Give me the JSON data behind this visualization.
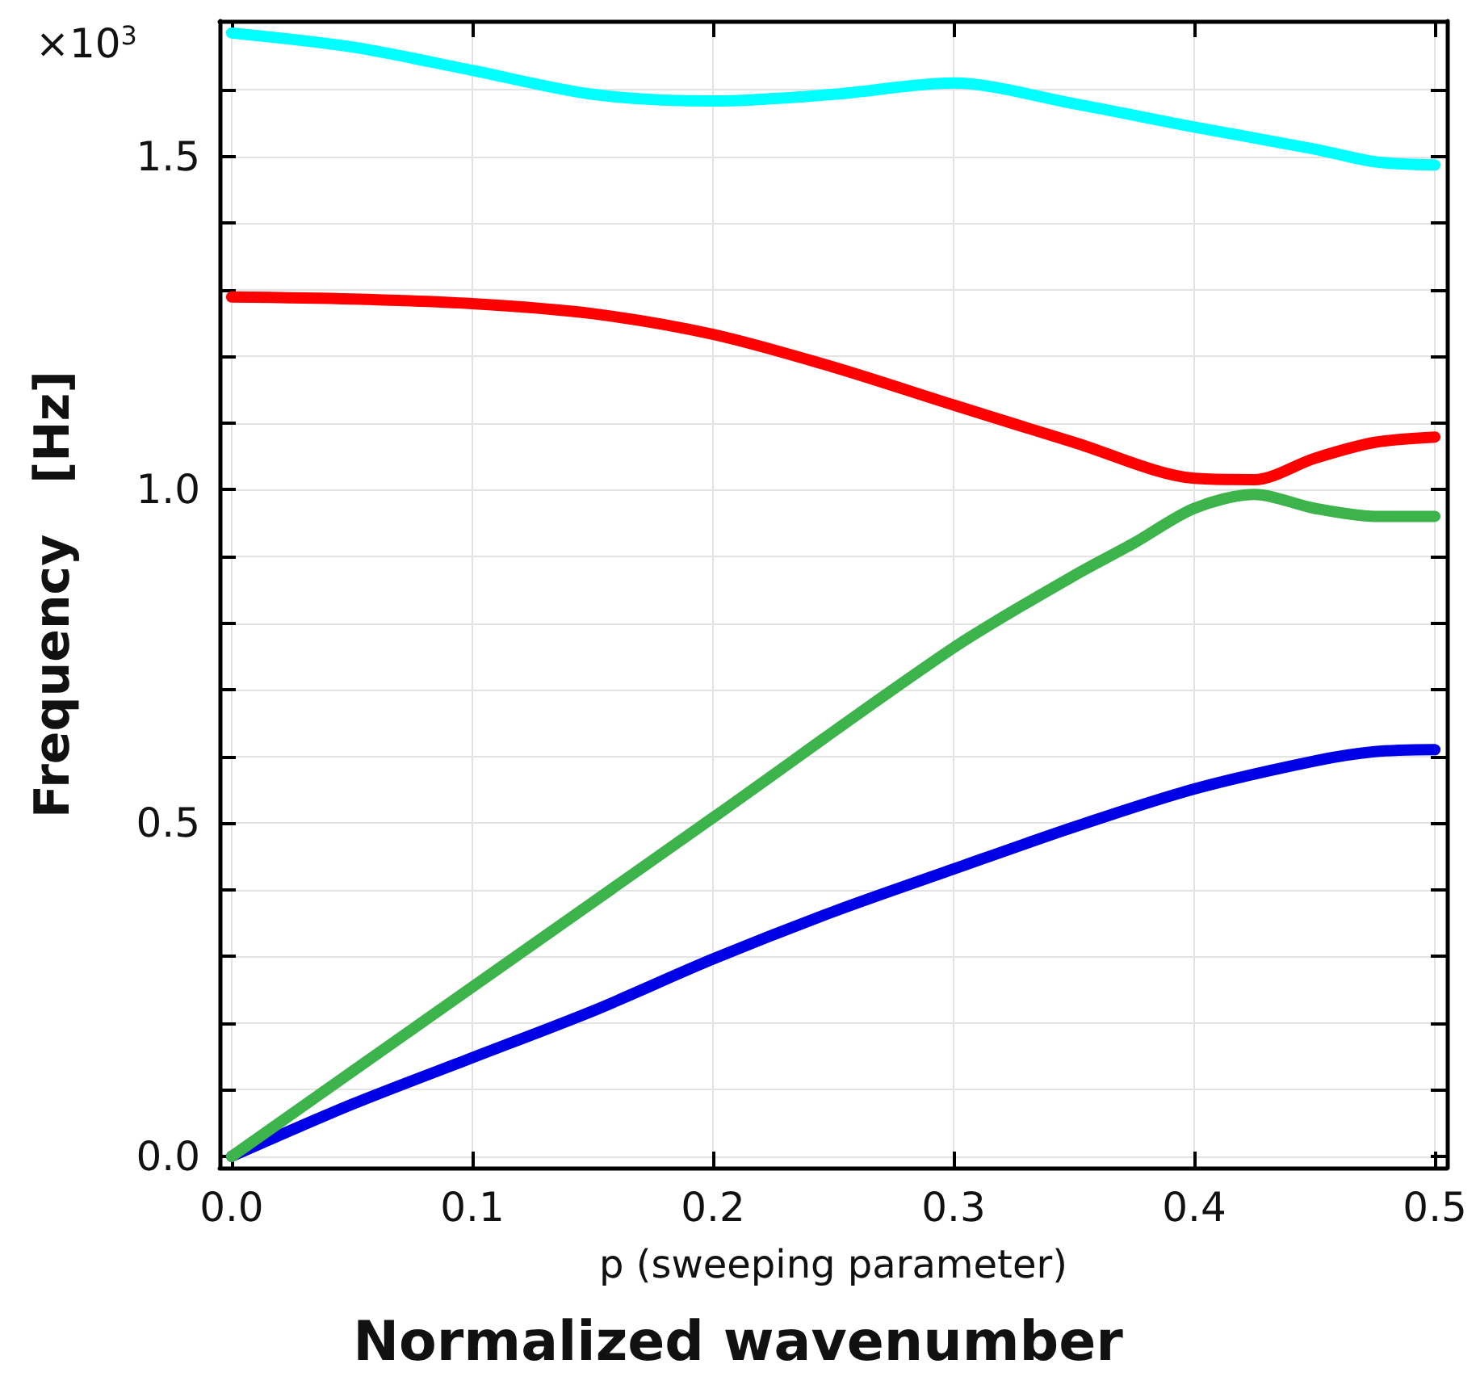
{
  "chart_data": {
    "type": "line",
    "xlabel": "p (sweeping parameter)",
    "ylabel": "Frequency   [Hz]",
    "annotations": [
      "×10$^{3}$",
      "Normalized wavenumber"
    ],
    "xlim": [
      -0.005,
      0.505
    ],
    "ylim": [
      -0.017,
      1.703
    ],
    "xticks": [
      {
        "value": 0,
        "label": "0.0"
      },
      0.1,
      0.2,
      0.3,
      0.4,
      0.5
    ],
    "yticks": [
      {
        "value": 0,
        "label": "0.0"
      },
      {
        "value": 0.1,
        "label": null
      },
      {
        "value": 0.2,
        "label": null
      },
      {
        "value": 0.3,
        "label": null
      },
      {
        "value": 0.4,
        "label": null
      },
      0.5,
      {
        "value": 0.6,
        "label": null
      },
      {
        "value": 0.7,
        "label": null
      },
      {
        "value": 0.8,
        "label": null
      },
      {
        "value": 0.9,
        "label": null
      },
      {
        "value": 1,
        "label": "1.0"
      },
      {
        "value": 1.1,
        "label": null
      },
      {
        "value": 1.2,
        "label": null
      },
      {
        "value": 1.3,
        "label": null
      },
      {
        "value": 1.4,
        "label": null
      },
      1.5,
      {
        "value": 1.6,
        "label": null
      }
    ],
    "grid": true,
    "marker": "none",
    "line_style": "solid",
    "series": [
      {
        "color": "#0000e6",
        "x": [
          0,
          0.05,
          0.1,
          0.15,
          0.2,
          0.25,
          0.3,
          0.35,
          0.4,
          0.45,
          0.475,
          0.5
        ],
        "values": [
          0,
          0.078,
          0.148,
          0.218,
          0.296,
          0.367,
          0.431,
          0.494,
          0.551,
          0.593,
          0.607,
          0.61
        ]
      },
      {
        "color": "#3cb44b",
        "x": [
          0,
          0.1,
          0.2,
          0.3,
          0.35,
          0.375,
          0.4,
          0.425,
          0.45,
          0.475,
          0.5
        ],
        "values": [
          0,
          0.254,
          0.508,
          0.763,
          0.871,
          0.92,
          0.972,
          0.993,
          0.972,
          0.96,
          0.96
        ]
      },
      {
        "color": "#ff0000",
        "x": [
          0,
          0.05,
          0.1,
          0.15,
          0.2,
          0.25,
          0.3,
          0.35,
          0.4,
          0.425,
          0.45,
          0.475,
          0.5
        ],
        "values": [
          1.289,
          1.286,
          1.279,
          1.264,
          1.233,
          1.184,
          1.127,
          1.071,
          1.017,
          1.015,
          1.047,
          1.071,
          1.079
        ]
      },
      {
        "color": "#00ffff",
        "x": [
          0,
          0.05,
          0.1,
          0.15,
          0.2,
          0.25,
          0.3,
          0.35,
          0.4,
          0.45,
          0.475,
          0.5
        ],
        "values": [
          1.685,
          1.664,
          1.629,
          1.593,
          1.583,
          1.593,
          1.61,
          1.579,
          1.544,
          1.511,
          1.492,
          1.487
        ]
      }
    ]
  }
}
